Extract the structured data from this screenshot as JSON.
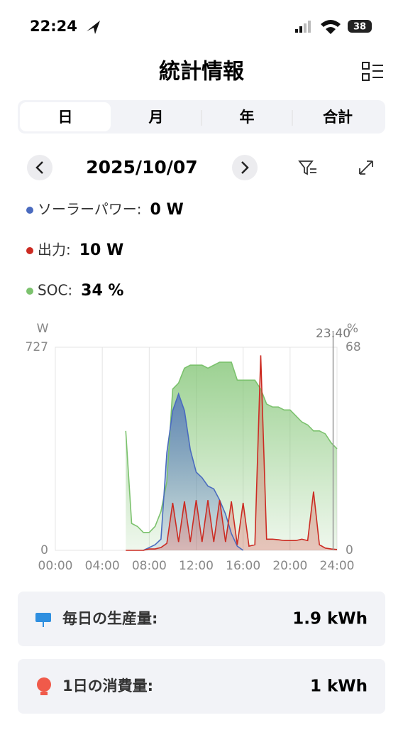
{
  "status_bar": {
    "time": "22:24",
    "battery": "38"
  },
  "header": {
    "title": "統計情報"
  },
  "tabs": [
    "日",
    "月",
    "年",
    "合計"
  ],
  "date": "2025/10/07",
  "legend": [
    {
      "label": "ソーラーパワー:",
      "value": "0 W"
    },
    {
      "label": "出力:",
      "value": "10 W"
    },
    {
      "label": "SOC:",
      "value": "34 %"
    }
  ],
  "chart_data": {
    "type": "area",
    "x": [
      0,
      0.5,
      1,
      1.5,
      2,
      2.5,
      3,
      3.5,
      4,
      4.5,
      5,
      5.5,
      6,
      6.5,
      7,
      7.5,
      8,
      8.5,
      9,
      9.5,
      10,
      10.5,
      11,
      11.5,
      12,
      12.5,
      13,
      13.5,
      14,
      14.5,
      15,
      15.5,
      16,
      16.5,
      17,
      17.5,
      18,
      18.5,
      19,
      19.5,
      20,
      20.5,
      21,
      21.5,
      22,
      22.5,
      23,
      23.5,
      24
    ],
    "series": [
      {
        "name": "SOC",
        "color": "#7cc26e",
        "axis": "y2",
        "values": [
          null,
          null,
          null,
          null,
          null,
          null,
          null,
          null,
          null,
          null,
          null,
          null,
          40,
          9,
          8,
          6,
          6,
          8,
          13,
          23,
          54,
          56,
          61,
          62,
          62,
          62,
          61,
          62,
          63,
          63,
          63,
          57,
          57,
          57,
          57,
          54,
          49,
          48,
          48,
          47,
          47,
          45,
          43,
          42,
          40,
          40,
          39,
          36,
          34
        ]
      },
      {
        "name": "ソーラーパワー",
        "color": "#4a6bbf",
        "values": [
          null,
          null,
          null,
          null,
          null,
          null,
          null,
          null,
          null,
          null,
          null,
          null,
          null,
          null,
          null,
          0,
          10,
          20,
          40,
          350,
          500,
          560,
          500,
          360,
          280,
          260,
          230,
          220,
          180,
          130,
          60,
          15,
          0,
          null,
          null,
          null,
          null,
          null,
          null,
          null,
          null,
          null,
          null,
          null,
          null,
          null,
          null,
          null,
          null
        ]
      },
      {
        "name": "出力",
        "color": "#cc2b22",
        "values": [
          null,
          null,
          null,
          null,
          null,
          null,
          null,
          null,
          null,
          null,
          null,
          null,
          0,
          0,
          0,
          0,
          5,
          5,
          10,
          25,
          170,
          30,
          175,
          30,
          180,
          30,
          180,
          30,
          180,
          30,
          175,
          20,
          170,
          15,
          20,
          698,
          40,
          40,
          38,
          35,
          35,
          35,
          40,
          35,
          210,
          20,
          8,
          5,
          3
        ]
      }
    ],
    "xlim": [
      0,
      24
    ],
    "xticks": [
      {
        "value": 0,
        "label": "00:00"
      },
      {
        "value": 4,
        "label": "04:00"
      },
      {
        "value": 8,
        "label": "08:00"
      },
      {
        "value": 12,
        "label": "12:00"
      },
      {
        "value": 16,
        "label": "16:00"
      },
      {
        "value": 20,
        "label": "20:00"
      },
      {
        "value": 24,
        "label": "24:00"
      }
    ],
    "ylabel": "W",
    "ylim": [
      0,
      727
    ],
    "yticks": [
      0,
      727
    ],
    "y2label": "%",
    "y2lim": [
      0,
      68
    ],
    "y2ticks": [
      0,
      68
    ],
    "grid": true,
    "cursor": {
      "x": 23.67,
      "label": "23:40"
    }
  },
  "cards": [
    {
      "label": "毎日の生産量:",
      "value": "1.9 kWh"
    },
    {
      "label": "1日の消費量:",
      "value": "1 kWh"
    }
  ]
}
